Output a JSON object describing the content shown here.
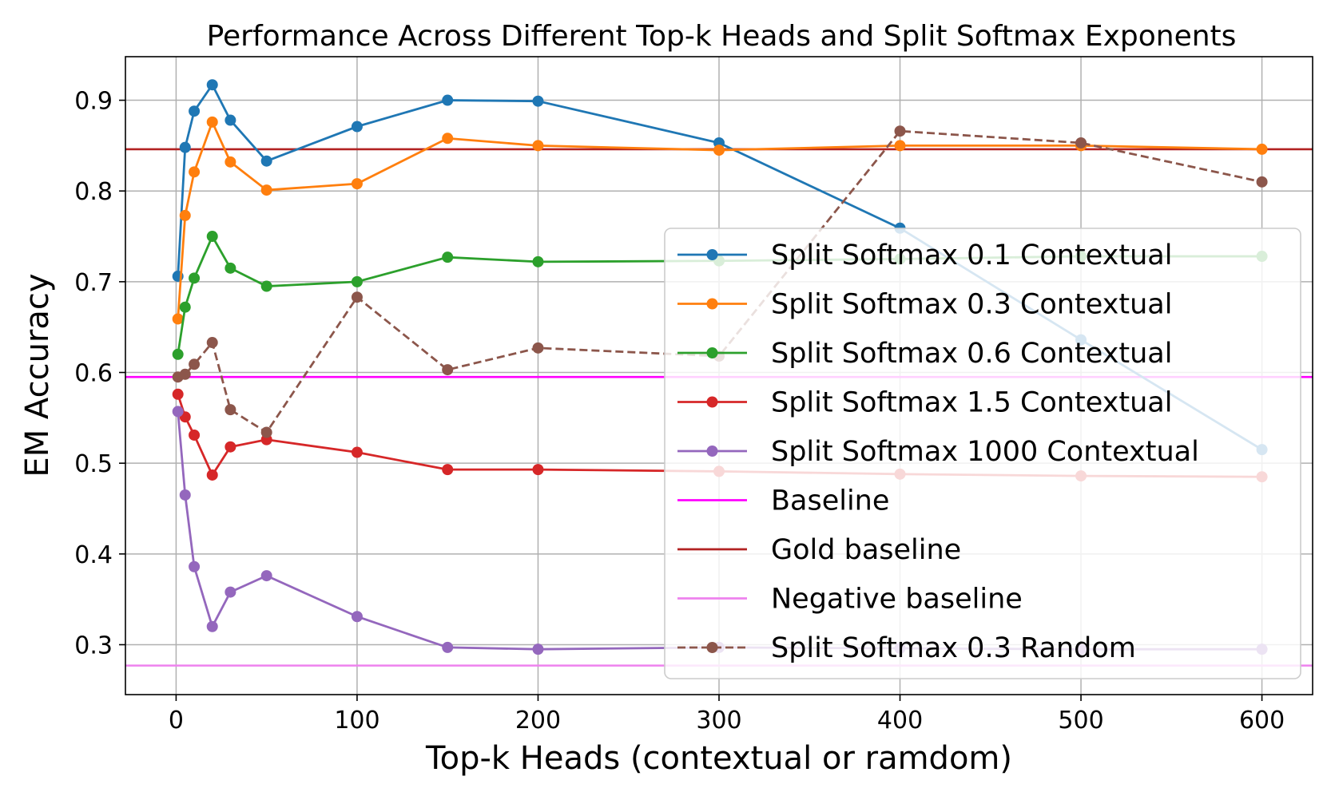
{
  "chart_data": {
    "type": "line",
    "title": "Performance Across Different Top-k Heads and Split Softmax Exponents",
    "xlabel": "Top-k Heads (contextual or ramdom)",
    "ylabel": "EM Accuracy",
    "xlim": [
      -28,
      628
    ],
    "ylim": [
      0.245,
      0.948
    ],
    "xticks": [
      0,
      100,
      200,
      300,
      400,
      500,
      600
    ],
    "yticks": [
      0.3,
      0.4,
      0.5,
      0.6,
      0.7,
      0.8,
      0.9
    ],
    "xtick_labels": [
      "0",
      "100",
      "200",
      "300",
      "400",
      "500",
      "600"
    ],
    "ytick_labels": [
      "0.3",
      "0.4",
      "0.5",
      "0.6",
      "0.7",
      "0.8",
      "0.9"
    ],
    "grid": true,
    "legend_position": "center-right",
    "series": [
      {
        "name": "Split Softmax 0.1 Contextual",
        "color": "#1f77b4",
        "style": "solid",
        "marker": true,
        "x": [
          1,
          5,
          10,
          20,
          30,
          50,
          100,
          150,
          200,
          300,
          400,
          500,
          600
        ],
        "y": [
          0.706,
          0.848,
          0.888,
          0.917,
          0.878,
          0.833,
          0.871,
          0.9,
          0.899,
          0.853,
          0.759,
          0.636,
          0.515
        ]
      },
      {
        "name": "Split Softmax 0.3 Contextual",
        "color": "#ff7f0e",
        "style": "solid",
        "marker": true,
        "x": [
          1,
          5,
          10,
          20,
          30,
          50,
          100,
          150,
          200,
          300,
          400,
          500,
          600
        ],
        "y": [
          0.659,
          0.773,
          0.821,
          0.876,
          0.832,
          0.801,
          0.808,
          0.858,
          0.85,
          0.845,
          0.85,
          0.85,
          0.846
        ]
      },
      {
        "name": "Split Softmax 0.6 Contextual",
        "color": "#2ca02c",
        "style": "solid",
        "marker": true,
        "x": [
          1,
          5,
          10,
          20,
          30,
          50,
          100,
          150,
          200,
          300,
          400,
          500,
          600
        ],
        "y": [
          0.62,
          0.672,
          0.704,
          0.75,
          0.715,
          0.695,
          0.7,
          0.727,
          0.722,
          0.723,
          0.725,
          0.728,
          0.728
        ]
      },
      {
        "name": "Split Softmax 1.5 Contextual",
        "color": "#d62728",
        "style": "solid",
        "marker": true,
        "x": [
          1,
          5,
          10,
          20,
          30,
          50,
          100,
          150,
          200,
          300,
          400,
          500,
          600
        ],
        "y": [
          0.576,
          0.551,
          0.531,
          0.487,
          0.518,
          0.526,
          0.512,
          0.493,
          0.493,
          0.491,
          0.488,
          0.486,
          0.485
        ]
      },
      {
        "name": "Split Softmax 1000 Contextual",
        "color": "#9467bd",
        "style": "solid",
        "marker": true,
        "x": [
          1,
          5,
          10,
          20,
          30,
          50,
          100,
          150,
          200,
          300,
          400,
          500,
          600
        ],
        "y": [
          0.557,
          0.465,
          0.386,
          0.32,
          0.358,
          0.376,
          0.331,
          0.297,
          0.295,
          0.297,
          0.296,
          0.295,
          0.295
        ]
      },
      {
        "name": "Baseline",
        "color": "#ff00ff",
        "style": "hline",
        "marker": false,
        "y": 0.595
      },
      {
        "name": "Gold baseline",
        "color": "#b22222",
        "style": "hline",
        "marker": false,
        "y": 0.846
      },
      {
        "name": "Negative baseline",
        "color": "#ee82ee",
        "style": "hline",
        "marker": false,
        "y": 0.277
      },
      {
        "name": "Split Softmax 0.3 Random",
        "color": "#8c564b",
        "style": "dashed",
        "marker": true,
        "x": [
          1,
          5,
          10,
          20,
          30,
          50,
          100,
          150,
          200,
          300,
          400,
          500,
          600
        ],
        "y": [
          0.595,
          0.598,
          0.609,
          0.633,
          0.559,
          0.534,
          0.683,
          0.603,
          0.627,
          0.618,
          0.866,
          0.853,
          0.81
        ]
      }
    ]
  }
}
